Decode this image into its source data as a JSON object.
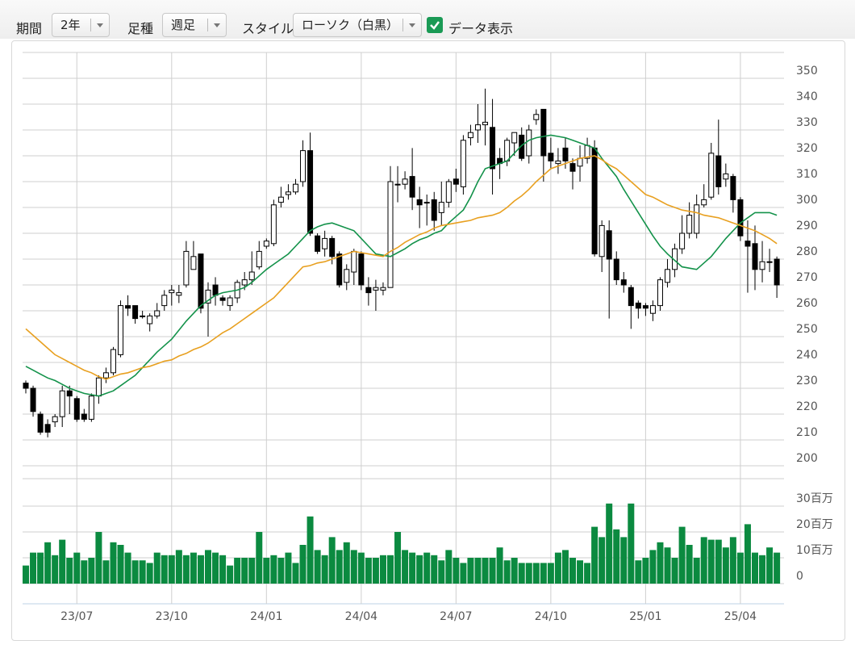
{
  "toolbar": {
    "period_label": "期間",
    "period": "2年",
    "type_label": "足種",
    "type": "週足",
    "style_label": "スタイル",
    "style": "ローソク（白黒）",
    "show_data_label": "データ表示",
    "show_data": true
  },
  "chart_data": [
    {
      "type": "candlestick",
      "categories": [
        null,
        null,
        null,
        null,
        null,
        null,
        null,
        "23/07",
        null,
        null,
        null,
        null,
        null,
        null,
        null,
        null,
        null,
        null,
        null,
        null,
        "23/10",
        null,
        null,
        null,
        null,
        null,
        null,
        null,
        null,
        null,
        null,
        null,
        null,
        "24/01",
        null,
        null,
        null,
        null,
        null,
        null,
        null,
        null,
        null,
        null,
        null,
        null,
        "24/04",
        null,
        null,
        null,
        null,
        null,
        null,
        null,
        null,
        null,
        null,
        null,
        null,
        "24/07",
        null,
        null,
        null,
        null,
        null,
        null,
        null,
        null,
        null,
        null,
        null,
        null,
        "24/10",
        null,
        null,
        null,
        null,
        null,
        null,
        null,
        null,
        null,
        null,
        null,
        null,
        "25/01",
        null,
        null,
        null,
        null,
        null,
        null,
        null,
        null,
        null,
        null,
        null,
        null,
        "25/04",
        null,
        null,
        null,
        null,
        null
      ],
      "open": [
        232,
        230,
        220,
        216,
        217,
        219,
        229,
        226,
        220,
        218,
        227,
        234,
        236,
        243,
        262,
        262,
        258,
        255,
        258,
        262,
        267,
        266,
        270,
        276,
        282,
        263,
        270,
        265,
        262,
        265,
        270,
        272,
        277,
        285,
        286,
        302,
        305,
        306,
        310,
        322,
        289,
        284,
        288,
        282,
        271,
        275,
        282,
        269,
        268,
        268,
        269,
        309,
        309,
        312,
        303,
        302,
        303,
        298,
        302,
        311,
        308,
        327,
        330,
        332,
        331,
        319,
        318,
        325,
        328,
        320,
        334,
        338,
        321,
        317,
        323,
        317,
        316,
        319,
        323,
        281,
        291,
        280,
        272,
        269,
        263,
        262,
        259,
        262,
        271,
        276,
        284,
        290,
        290,
        301,
        304,
        320,
        311,
        312,
        303,
        287,
        286,
        276,
        279,
        280
      ],
      "high": [
        233,
        231,
        221,
        218,
        220,
        231,
        231,
        227,
        222,
        228,
        235,
        238,
        246,
        264,
        266,
        262,
        260,
        259,
        263,
        268,
        270,
        270,
        287,
        287,
        282,
        271,
        273,
        266,
        266,
        272,
        275,
        283,
        287,
        288,
        303,
        308,
        309,
        311,
        326,
        329,
        290,
        291,
        289,
        283,
        278,
        284,
        283,
        273,
        272,
        271,
        316,
        316,
        314,
        323,
        308,
        305,
        306,
        310,
        311,
        315,
        328,
        332,
        340,
        346,
        342,
        323,
        327,
        329,
        331,
        332,
        338,
        338,
        327,
        323,
        327,
        319,
        324,
        327,
        326,
        295,
        295,
        283,
        275,
        270,
        264,
        263,
        264,
        273,
        280,
        286,
        297,
        302,
        305,
        309,
        325,
        334,
        317,
        313,
        304,
        295,
        293,
        287,
        284,
        281
      ],
      "low": [
        228,
        219,
        212,
        211,
        215,
        215,
        220,
        217,
        217,
        217,
        224,
        232,
        235,
        242,
        258,
        255,
        257,
        252,
        257,
        260,
        262,
        263,
        269,
        276,
        259,
        250,
        262,
        262,
        260,
        263,
        268,
        270,
        276,
        284,
        285,
        300,
        303,
        305,
        308,
        289,
        282,
        281,
        278,
        269,
        268,
        270,
        268,
        262,
        260,
        266,
        269,
        302,
        307,
        299,
        292,
        293,
        291,
        293,
        300,
        306,
        305,
        324,
        325,
        324,
        305,
        311,
        316,
        320,
        318,
        317,
        332,
        310,
        315,
        313,
        315,
        307,
        310,
        317,
        281,
        275,
        257,
        270,
        267,
        253,
        257,
        258,
        256,
        260,
        269,
        273,
        282,
        288,
        288,
        300,
        303,
        305,
        308,
        298,
        287,
        267,
        268,
        271,
        275,
        265
      ],
      "close": [
        230,
        221,
        213,
        213,
        219,
        229,
        227,
        218,
        218,
        227,
        234,
        236,
        245,
        262,
        261,
        257,
        258,
        258,
        260,
        266,
        268,
        267,
        283,
        281,
        261,
        268,
        266,
        264,
        265,
        271,
        272,
        275,
        283,
        287,
        301,
        304,
        306,
        309,
        322,
        290,
        283,
        288,
        281,
        270,
        276,
        283,
        270,
        267,
        269,
        269,
        310,
        309,
        311,
        304,
        301,
        302,
        295,
        302,
        310,
        309,
        326,
        329,
        332,
        333,
        315,
        317,
        326,
        329,
        319,
        330,
        336,
        320,
        318,
        318,
        318,
        314,
        319,
        324,
        282,
        293,
        280,
        272,
        270,
        262,
        261,
        261,
        262,
        272,
        276,
        284,
        290,
        297,
        301,
        303,
        321,
        308,
        313,
        303,
        289,
        285,
        276,
        279,
        279,
        270
      ],
      "up_color": "#ffffff",
      "down_color": "#000000",
      "lines": [
        {
          "color": "#13924a",
          "values": [
            238.5,
            237,
            235.5,
            234,
            233,
            231.5,
            230,
            229,
            228,
            227.5,
            227,
            228,
            229,
            231,
            233,
            235,
            238,
            241,
            244,
            246.5,
            249,
            252.5,
            256,
            259,
            262,
            264,
            266,
            267,
            267.5,
            268,
            269,
            271,
            273.5,
            276,
            278,
            280,
            282,
            285,
            288,
            291,
            292.5,
            293.5,
            294,
            293,
            292,
            291,
            288,
            285,
            282,
            281.5,
            281,
            282.5,
            284,
            286,
            287.5,
            288.5,
            290,
            291,
            294,
            296.5,
            299,
            304,
            310,
            315,
            316,
            317,
            318,
            321,
            324,
            326,
            327,
            327.5,
            328,
            327.5,
            327,
            326,
            325,
            324,
            323,
            319,
            315.5,
            312,
            307,
            302.5,
            298,
            293.5,
            289,
            285,
            282,
            279.5,
            277,
            276.5,
            276,
            278.5,
            281,
            284.5,
            288,
            291,
            294,
            296,
            298,
            298,
            298,
            297
          ]
        },
        {
          "color": "#e8a020",
          "values": [
            253,
            250.5,
            248,
            245.5,
            243,
            241.5,
            240,
            238.5,
            237,
            236,
            234.5,
            233.5,
            234.5,
            235.5,
            236,
            237,
            238,
            238.5,
            239.5,
            240.5,
            241,
            242.5,
            243.5,
            245,
            246,
            247.5,
            249.5,
            251.5,
            253,
            255,
            257,
            259,
            261,
            263,
            265,
            268,
            271,
            274,
            277,
            277.5,
            278.5,
            279,
            280,
            281,
            282,
            283,
            282.5,
            282,
            281.5,
            281,
            283,
            284.5,
            286.5,
            288,
            289.5,
            290.5,
            292,
            293,
            293.5,
            294,
            294.5,
            295,
            296,
            296.5,
            297,
            298,
            300,
            302.5,
            304.5,
            307,
            310,
            312.5,
            315,
            316,
            317,
            318,
            319,
            319.5,
            320,
            318.5,
            316.5,
            315,
            312.5,
            310,
            307.5,
            305,
            304,
            302.5,
            301,
            300,
            299,
            298.5,
            298,
            297,
            296.5,
            296,
            295,
            294,
            293,
            292,
            291,
            289.5,
            288,
            286
          ]
        }
      ],
      "ylim": [
        200,
        360
      ],
      "yticks": [
        200,
        210,
        220,
        230,
        240,
        250,
        260,
        270,
        280,
        290,
        300,
        310,
        320,
        330,
        340,
        350
      ],
      "grid": true
    },
    {
      "type": "bar",
      "color": "#0b8a40",
      "values": [
        7,
        12,
        12,
        16,
        11,
        17,
        10,
        12,
        9,
        10,
        20,
        9,
        16,
        15,
        12,
        9,
        9,
        8,
        12,
        11,
        11,
        13,
        11,
        12,
        11,
        13,
        12,
        11,
        7,
        10,
        10,
        10,
        20,
        10,
        11,
        10,
        12,
        8,
        15,
        26,
        13,
        11,
        18,
        13,
        16,
        13,
        12,
        10,
        10,
        11,
        11,
        20,
        13,
        12,
        11,
        12,
        11,
        9,
        13,
        10,
        8,
        10,
        10,
        10,
        10,
        14,
        9,
        10,
        8,
        8,
        8,
        8,
        8,
        12,
        13,
        10,
        9,
        8,
        22,
        18,
        31,
        21,
        18,
        31,
        9,
        10,
        13,
        16,
        14,
        10,
        22,
        15,
        10,
        18,
        17,
        17,
        14,
        18,
        12,
        23,
        12,
        11,
        14,
        12
      ],
      "ylim": [
        0,
        40
      ],
      "yticks": [
        0,
        {
          "value": 10,
          "label": "10百万"
        },
        {
          "value": 20,
          "label": "20百万"
        },
        {
          "value": 30,
          "label": "30百万"
        }
      ],
      "grid": true
    }
  ]
}
